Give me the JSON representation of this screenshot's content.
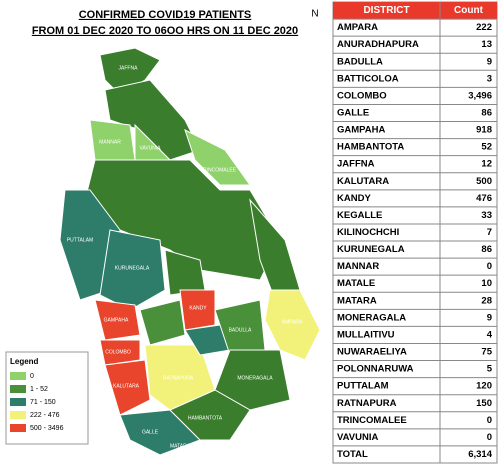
{
  "map": {
    "title": [
      "CONFIRMED COVID19 PATIENTS",
      "FROM 01 DEC  2020 TO 06OO HRS ON 11 DEC 2020"
    ],
    "north": "N",
    "legend": {
      "title": "Legend",
      "items": [
        "0",
        "1 - 52",
        "71 - 150",
        "222 - 476",
        "500 - 3496"
      ]
    },
    "labels": [
      "JAFFNA",
      "MANNAR",
      "VAVUNIA",
      "TRINCOMALEE",
      "PUTTALAM",
      "KURUNEGALA",
      "KANDY",
      "GAMPAHA",
      "COLOMBO",
      "KALUTARA",
      "RATNAPURA",
      "AMPARA",
      "BADULLA",
      "MONERAGALA",
      "HAMBANTOTA",
      "GALLE",
      "MATARA"
    ]
  },
  "table": {
    "header": [
      "DISTRICT",
      "Count"
    ],
    "rows": [
      [
        "AMPARA",
        "222"
      ],
      [
        "ANURADHAPURA",
        "13"
      ],
      [
        "BADULLA",
        "9"
      ],
      [
        "BATTICOLOA",
        "3"
      ],
      [
        "COLOMBO",
        "3,496"
      ],
      [
        "GALLE",
        "86"
      ],
      [
        "GAMPAHA",
        "918"
      ],
      [
        "HAMBANTOTA",
        "52"
      ],
      [
        "JAFFNA",
        "12"
      ],
      [
        "KALUTARA",
        "500"
      ],
      [
        "KANDY",
        "476"
      ],
      [
        "KEGALLE",
        "33"
      ],
      [
        "KILINOCHCHI",
        "7"
      ],
      [
        "KURUNEGALA",
        "86"
      ],
      [
        "MANNAR",
        "0"
      ],
      [
        "MATALE",
        "10"
      ],
      [
        "MATARA",
        "28"
      ],
      [
        "MONERAGALA",
        "9"
      ],
      [
        "MULLAITIVU",
        "4"
      ],
      [
        "NUWARAELIYA",
        "75"
      ],
      [
        "POLONNARUWA",
        "5"
      ],
      [
        "PUTTALAM",
        "120"
      ],
      [
        "RATNAPURA",
        "150"
      ],
      [
        "TRINCOMALEE",
        "0"
      ],
      [
        "VAVUNIA",
        "0"
      ]
    ],
    "total": [
      "TOTAL",
      "6,314"
    ]
  }
}
